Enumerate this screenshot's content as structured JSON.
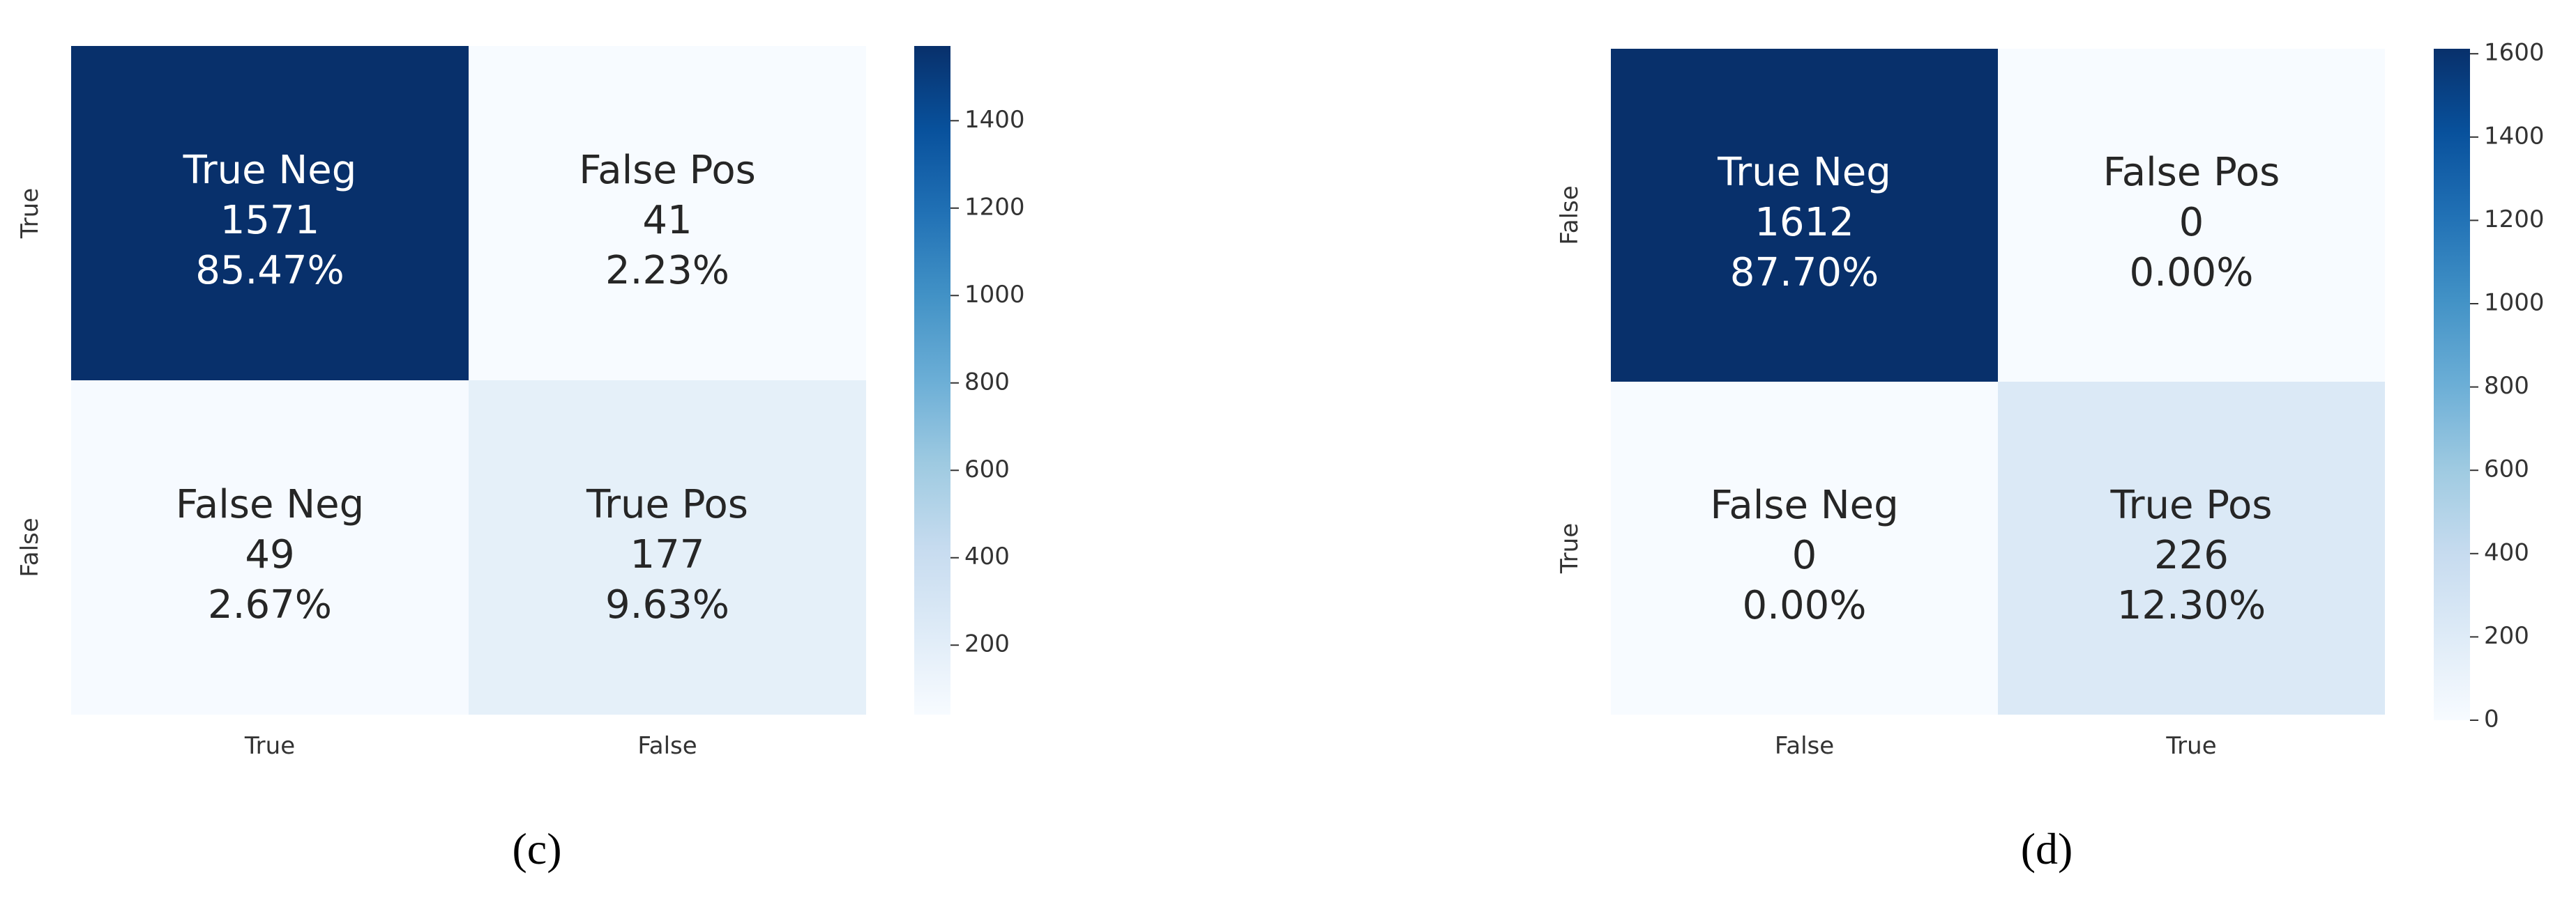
{
  "colors": {
    "scale_low": "#f7fbff",
    "scale_high": "#08306b",
    "text_dark": "#262626",
    "text_light": "#ffffff"
  },
  "chart_data": [
    {
      "type": "heatmap",
      "caption": "(c)",
      "row_labels": [
        "True",
        "False"
      ],
      "col_labels": [
        "True",
        "False"
      ],
      "cells": [
        [
          {
            "label": "True Neg",
            "count": 1571,
            "percent": "85.47%"
          },
          {
            "label": "False Pos",
            "count": 41,
            "percent": "2.23%"
          }
        ],
        [
          {
            "label": "False Neg",
            "count": 49,
            "percent": "2.67%"
          },
          {
            "label": "True Pos",
            "count": 177,
            "percent": "9.63%"
          }
        ]
      ],
      "colorbar": {
        "min": 41,
        "max": 1571,
        "ticks": [
          200,
          400,
          600,
          800,
          1000,
          1200,
          1400
        ]
      }
    },
    {
      "type": "heatmap",
      "caption": "(d)",
      "row_labels": [
        "False",
        "True"
      ],
      "col_labels": [
        "False",
        "True"
      ],
      "cells": [
        [
          {
            "label": "True Neg",
            "count": 1612,
            "percent": "87.70%"
          },
          {
            "label": "False Pos",
            "count": 0,
            "percent": "0.00%"
          }
        ],
        [
          {
            "label": "False Neg",
            "count": 0,
            "percent": "0.00%"
          },
          {
            "label": "True Pos",
            "count": 226,
            "percent": "12.30%"
          }
        ]
      ],
      "colorbar": {
        "min": 0,
        "max": 1612,
        "ticks": [
          0,
          200,
          400,
          600,
          800,
          1000,
          1200,
          1400,
          1600
        ]
      }
    }
  ]
}
